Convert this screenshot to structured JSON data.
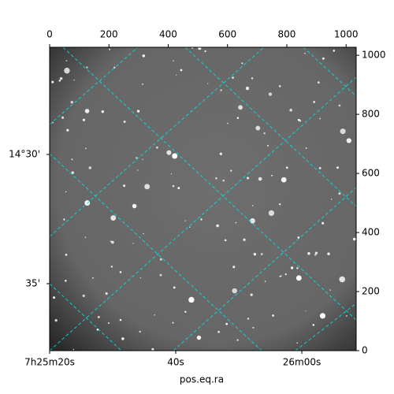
{
  "chart_data": {
    "type": "image",
    "xlabel": "pos.eq.ra",
    "xlim": [
      0,
      1034
    ],
    "xticks": [
      0,
      200,
      400,
      600,
      800,
      1000
    ],
    "ylim": [
      0,
      1027
    ],
    "yticks": [
      0,
      200,
      400,
      600,
      800,
      1000
    ],
    "ra_labels": [
      "7h25m20s",
      "40s",
      "26m00s"
    ],
    "dec_labels": [
      "14°30'",
      "35'"
    ]
  }
}
